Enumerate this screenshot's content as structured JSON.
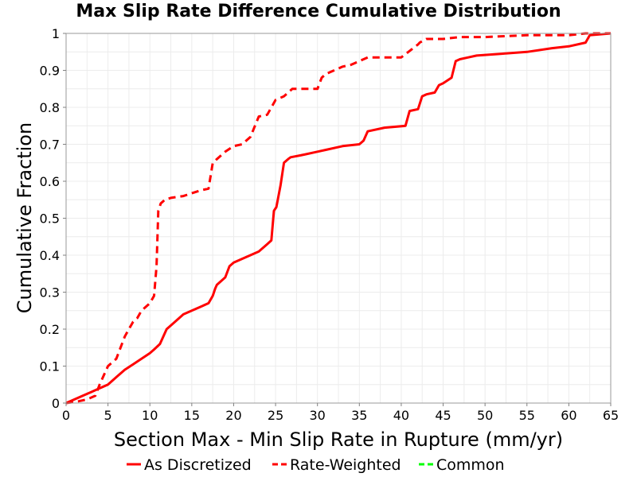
{
  "chart_data": {
    "type": "line",
    "title": "Max Slip Rate Difference Cumulative Distribution",
    "xlabel": "Section Max - Min Slip Rate in Rupture (mm/yr)",
    "ylabel": "Cumulative Fraction",
    "xlim": [
      0,
      65
    ],
    "ylim": [
      0,
      1
    ],
    "x_ticks": [
      0,
      5,
      10,
      15,
      20,
      25,
      30,
      35,
      40,
      45,
      50,
      55,
      60,
      65
    ],
    "y_ticks": [
      0,
      0.1,
      0.2,
      0.3,
      0.4,
      0.5,
      0.6,
      0.7,
      0.8,
      0.9,
      1
    ],
    "x_tick_labels": [
      "0",
      "5",
      "10",
      "15",
      "20",
      "25",
      "30",
      "35",
      "40",
      "45",
      "50",
      "55",
      "60",
      "65"
    ],
    "y_tick_labels": [
      "0",
      "0.1",
      "0.2",
      "0.3",
      "0.4",
      "0.5",
      "0.6",
      "0.7",
      "0.8",
      "0.9",
      "1"
    ],
    "grid": true,
    "legend_position": "bottom",
    "series": [
      {
        "name": "As Discretized",
        "color": "#ff0000",
        "style": "solid",
        "x": [
          0,
          1,
          2,
          3,
          4,
          5,
          6,
          7,
          8,
          9,
          10,
          10.5,
          11.2,
          11.8,
          12,
          13,
          14,
          15,
          16,
          17,
          17.5,
          17.8,
          18,
          19,
          19.5,
          20,
          21,
          22,
          23,
          24,
          24.5,
          24.8,
          25.1,
          25.6,
          26,
          26.5,
          26.8,
          28,
          30,
          31,
          33,
          35,
          35.5,
          36,
          38,
          40.5,
          41,
          42,
          42.5,
          43,
          44,
          44.5,
          45,
          46,
          46.5,
          47,
          48,
          49,
          52,
          55,
          58,
          60,
          62,
          62.5,
          65
        ],
        "y": [
          0,
          0.01,
          0.02,
          0.03,
          0.04,
          0.05,
          0.07,
          0.09,
          0.105,
          0.12,
          0.135,
          0.145,
          0.16,
          0.19,
          0.2,
          0.22,
          0.24,
          0.25,
          0.26,
          0.27,
          0.29,
          0.31,
          0.32,
          0.34,
          0.37,
          0.38,
          0.39,
          0.4,
          0.41,
          0.43,
          0.44,
          0.52,
          0.53,
          0.59,
          0.65,
          0.66,
          0.665,
          0.67,
          0.68,
          0.685,
          0.695,
          0.7,
          0.71,
          0.735,
          0.745,
          0.75,
          0.79,
          0.795,
          0.83,
          0.835,
          0.84,
          0.86,
          0.865,
          0.88,
          0.925,
          0.93,
          0.935,
          0.94,
          0.945,
          0.95,
          0.96,
          0.965,
          0.975,
          0.995,
          1
        ]
      },
      {
        "name": "Rate-Weighted",
        "color": "#ff0000",
        "style": "dashed",
        "x": [
          0,
          1.5,
          2.5,
          3.5,
          4,
          5,
          6,
          7,
          7.5,
          8,
          8.5,
          9,
          10,
          10.5,
          10.8,
          11,
          11.3,
          11.8,
          12.5,
          14,
          16,
          17,
          17.5,
          18,
          19,
          20,
          21,
          22,
          23,
          24,
          25,
          26,
          27,
          29,
          30,
          30.5,
          31,
          32,
          33,
          34,
          34.5,
          35,
          36,
          40,
          42,
          42.2,
          43,
          45,
          47,
          50,
          55,
          60,
          62,
          63,
          65
        ],
        "y": [
          0,
          0.005,
          0.01,
          0.02,
          0.05,
          0.1,
          0.12,
          0.18,
          0.2,
          0.22,
          0.23,
          0.25,
          0.27,
          0.29,
          0.37,
          0.52,
          0.54,
          0.55,
          0.555,
          0.56,
          0.575,
          0.58,
          0.65,
          0.66,
          0.68,
          0.695,
          0.7,
          0.72,
          0.775,
          0.78,
          0.82,
          0.83,
          0.85,
          0.85,
          0.85,
          0.88,
          0.89,
          0.9,
          0.91,
          0.915,
          0.92,
          0.925,
          0.935,
          0.935,
          0.97,
          0.975,
          0.985,
          0.985,
          0.99,
          0.99,
          0.995,
          0.995,
          1,
          1,
          1
        ]
      },
      {
        "name": "Common",
        "color": "#00ff00",
        "style": "dashed",
        "x": [],
        "y": []
      }
    ]
  }
}
